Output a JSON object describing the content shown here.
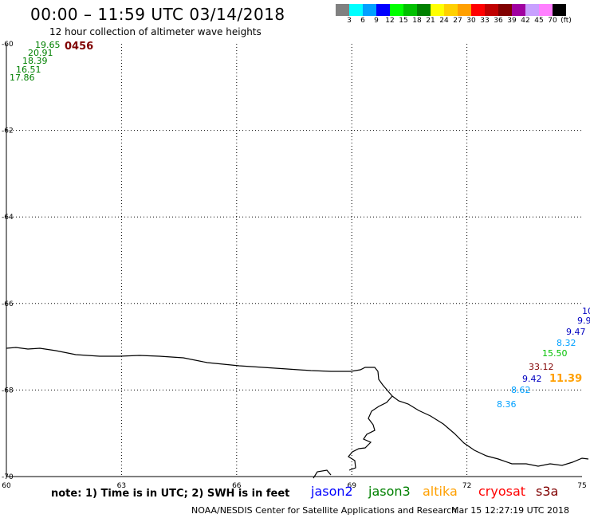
{
  "header": {
    "title": "00:00 – 11:59 UTC 03/14/2018",
    "subtitle": "12 hour collection of altimeter wave heights"
  },
  "scale": {
    "colors": [
      "#808080",
      "#00ffff",
      "#00a0ff",
      "#0000ff",
      "#00ff00",
      "#00c000",
      "#008000",
      "#ffff00",
      "#ffd000",
      "#ffa000",
      "#ff0000",
      "#c00000",
      "#800000",
      "#a000a0",
      "#c8a0ff",
      "#ff80ff",
      "#000000"
    ],
    "labels": [
      "3",
      "6",
      "9",
      "12",
      "15",
      "18",
      "21",
      "24",
      "27",
      "30",
      "33",
      "36",
      "39",
      "42",
      "45",
      "70",
      "(ft)"
    ]
  },
  "map_data": {
    "lon_range": [
      60,
      75
    ],
    "lat_range": [
      -70,
      -60
    ],
    "lon_ticks": [
      "60",
      "63",
      "66",
      "69",
      "72",
      "75"
    ],
    "lat_ticks": [
      "-60",
      "-62",
      "-64",
      "-66",
      "-68",
      "-70"
    ],
    "grid": "dotted",
    "time_label": {
      "text": "0456",
      "color": "#800000"
    },
    "observations": [
      {
        "text": "19.65",
        "color": "#008000"
      },
      {
        "text": "20.91",
        "color": "#008000"
      },
      {
        "text": "18.39",
        "color": "#008000"
      },
      {
        "text": "16.51",
        "color": "#008000"
      },
      {
        "text": "17.86",
        "color": "#008000"
      },
      {
        "text": "10",
        "color": "#0000c0"
      },
      {
        "text": "9.9",
        "color": "#0000c0"
      },
      {
        "text": "9.47",
        "color": "#0000c0"
      },
      {
        "text": "8.32",
        "color": "#00a0ff"
      },
      {
        "text": "15.50",
        "color": "#00c000"
      },
      {
        "text": "33.12",
        "color": "#800000"
      },
      {
        "text": "9.42",
        "color": "#0000c0"
      },
      {
        "text": "11.39",
        "color": "#ffa000"
      },
      {
        "text": "8.62",
        "color": "#00a0ff"
      },
      {
        "text": "8.36",
        "color": "#00a0ff"
      }
    ]
  },
  "note": "note: 1) Time is in UTC; 2) SWH is in feet",
  "legend": [
    {
      "name": "jason2",
      "color": "#0000ff"
    },
    {
      "name": "jason3",
      "color": "#008000"
    },
    {
      "name": "altika",
      "color": "#ffa000"
    },
    {
      "name": "cryosat",
      "color": "#ff0000"
    },
    {
      "name": "s3a",
      "color": "#800000"
    }
  ],
  "footer": {
    "credit": "NOAA/NESDIS Center for Satellite Applications and Research",
    "timestamp": "Mar 15 12:27:19 UTC 2018"
  }
}
